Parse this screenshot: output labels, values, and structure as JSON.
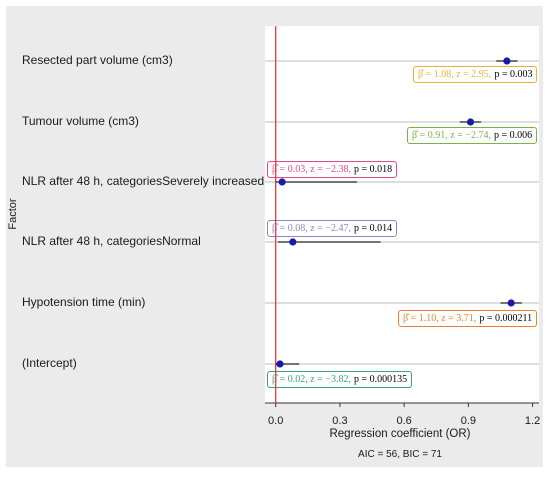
{
  "chart_data": {
    "type": "forest",
    "ylabel": "Factor",
    "xlabel": "Regression coefficient (OR)",
    "caption": "AIC = 56, BIC = 71",
    "xlim": [
      -0.05,
      1.23
    ],
    "xticks": [
      "0.0",
      "0.3",
      "0.6",
      "0.9",
      "1.2"
    ],
    "reference_line": 0,
    "rows": [
      {
        "label": "Resected part volume (cm3)",
        "estimate": 1.08,
        "ci": [
          1.03,
          1.13
        ],
        "annotation": {
          "beta": "β̂ = 1.08,",
          "z": "z = 2.95,",
          "p": "p = 0.003",
          "color": "#e8b23a"
        }
      },
      {
        "label": "Tumour volume (cm3)",
        "estimate": 0.91,
        "ci": [
          0.86,
          0.96
        ],
        "annotation": {
          "beta": "β̂ = 0.91,",
          "z": "z = −2.74,",
          "p": "p = 0.006",
          "color": "#79b347"
        }
      },
      {
        "label": "NLR after 48 h, categoriesSeverely increased",
        "estimate": 0.03,
        "ci": [
          0.0,
          0.38
        ],
        "annotation": {
          "beta": "β̂ = 0.03,",
          "z": "z = −2.38,",
          "p": "p = 0.018",
          "color": "#e34a8e"
        }
      },
      {
        "label": "NLR after 48 h, categoriesNormal",
        "estimate": 0.08,
        "ci": [
          0.01,
          0.49
        ],
        "annotation": {
          "beta": "β̂ = 0.08,",
          "z": "z = −2.47,",
          "p": "p = 0.014",
          "color": "#8a86c7"
        }
      },
      {
        "label": "Hypotension time (min)",
        "estimate": 1.1,
        "ci": [
          1.05,
          1.15
        ],
        "annotation": {
          "beta": "β̂ = 1.10,",
          "z": "z = 3.71,",
          "p": "p = 0.000211",
          "color": "#ec7f32"
        }
      },
      {
        "label": "(Intercept)",
        "estimate": 0.02,
        "ci": [
          0.0,
          0.11
        ],
        "annotation": {
          "beta": "β̂ = 0.02,",
          "z": "z = −3.82,",
          "p": "p = 0.000135",
          "color": "#3aa37f"
        }
      }
    ],
    "colors": {
      "point": "#1a1aaa",
      "reference": "#e23b3b",
      "grid": "#bdbdbd"
    }
  }
}
